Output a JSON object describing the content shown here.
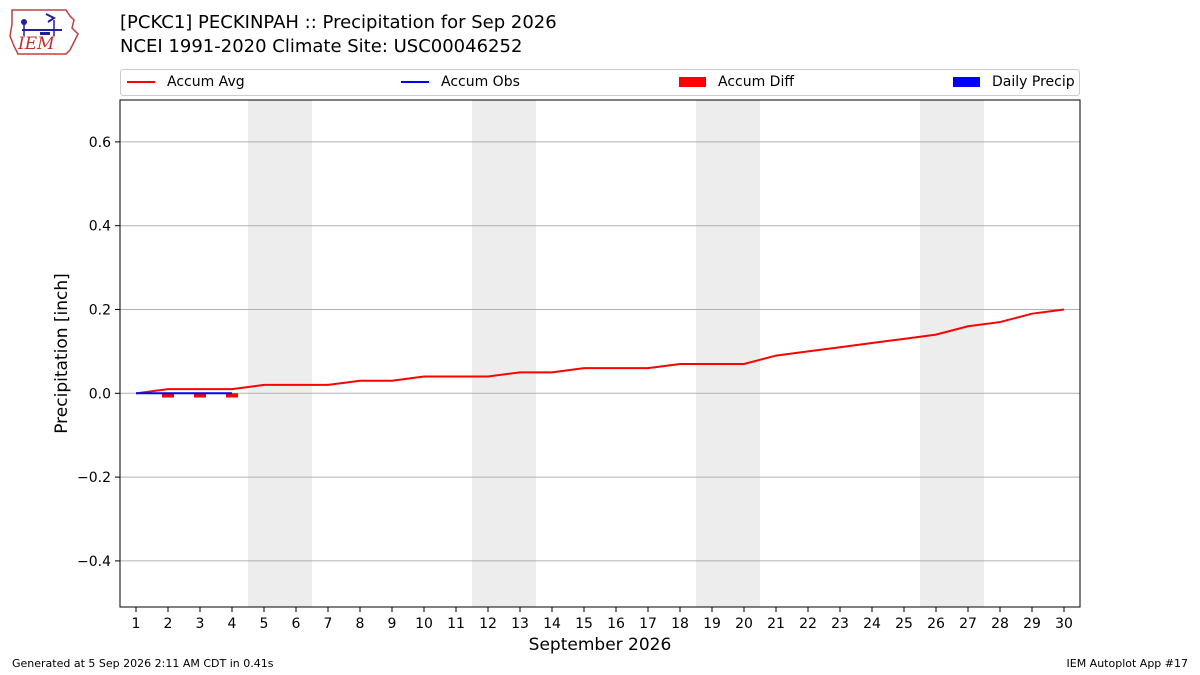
{
  "header": {
    "title": "[PCKC1] PECKINPAH :: Precipitation for Sep 2026",
    "subtitle": "NCEI 1991-2020 Climate Site: USC00046252",
    "logo_text": "IEM"
  },
  "legend": [
    {
      "label": "Accum Avg",
      "kind": "line",
      "color": "#ff0000"
    },
    {
      "label": "Accum Obs",
      "kind": "line",
      "color": "#0000ff"
    },
    {
      "label": "Accum Diff",
      "kind": "box",
      "color": "#ff0000"
    },
    {
      "label": "Daily Precip",
      "kind": "box",
      "color": "#0000ff"
    }
  ],
  "footer": {
    "left": "Generated at 5 Sep 2026 2:11 AM CDT in 0.41s",
    "right": "IEM Autoplot App #17"
  },
  "chart_data": {
    "type": "line",
    "xlabel": "September 2026",
    "ylabel": "Precipitation [inch]",
    "xlim": [
      0.5,
      30.5
    ],
    "ylim": [
      -0.51,
      0.7
    ],
    "x_ticks": [
      1,
      2,
      3,
      4,
      5,
      6,
      7,
      8,
      9,
      10,
      11,
      12,
      13,
      14,
      15,
      16,
      17,
      18,
      19,
      20,
      21,
      22,
      23,
      24,
      25,
      26,
      27,
      28,
      29,
      30
    ],
    "y_ticks": [
      -0.4,
      -0.2,
      0.0,
      0.2,
      0.4,
      0.6
    ],
    "y_tick_labels": [
      "−0.4",
      "−0.2",
      "0.0",
      "0.2",
      "0.4",
      "0.6"
    ],
    "weekend_shading": [
      [
        4.5,
        6.5
      ],
      [
        11.5,
        13.5
      ],
      [
        18.5,
        20.5
      ],
      [
        25.5,
        27.5
      ]
    ],
    "grid": "horizontal",
    "legend_position": "top",
    "series": [
      {
        "name": "Accum Avg",
        "kind": "line",
        "color": "#ff0000",
        "x": [
          1,
          2,
          3,
          4,
          5,
          6,
          7,
          8,
          9,
          10,
          11,
          12,
          13,
          14,
          15,
          16,
          17,
          18,
          19,
          20,
          21,
          22,
          23,
          24,
          25,
          26,
          27,
          28,
          29,
          30
        ],
        "values": [
          0.0,
          0.01,
          0.01,
          0.01,
          0.02,
          0.02,
          0.02,
          0.03,
          0.03,
          0.04,
          0.04,
          0.04,
          0.05,
          0.05,
          0.06,
          0.06,
          0.06,
          0.07,
          0.07,
          0.07,
          0.09,
          0.1,
          0.11,
          0.12,
          0.13,
          0.14,
          0.16,
          0.17,
          0.19,
          0.2
        ]
      },
      {
        "name": "Accum Obs",
        "kind": "line",
        "color": "#0000ff",
        "x": [
          1,
          2,
          3,
          4
        ],
        "values": [
          0.0,
          0.0,
          0.0,
          0.0
        ]
      },
      {
        "name": "Accum Diff",
        "kind": "bar",
        "color": "#ff0000",
        "x": [
          1,
          2,
          3,
          4
        ],
        "values": [
          0.0,
          -0.01,
          -0.01,
          -0.01
        ]
      },
      {
        "name": "Daily Precip",
        "kind": "bar",
        "color": "#0000ff",
        "x": [
          1,
          2,
          3,
          4
        ],
        "values": [
          0.0,
          0.0,
          0.0,
          0.0
        ]
      }
    ]
  }
}
